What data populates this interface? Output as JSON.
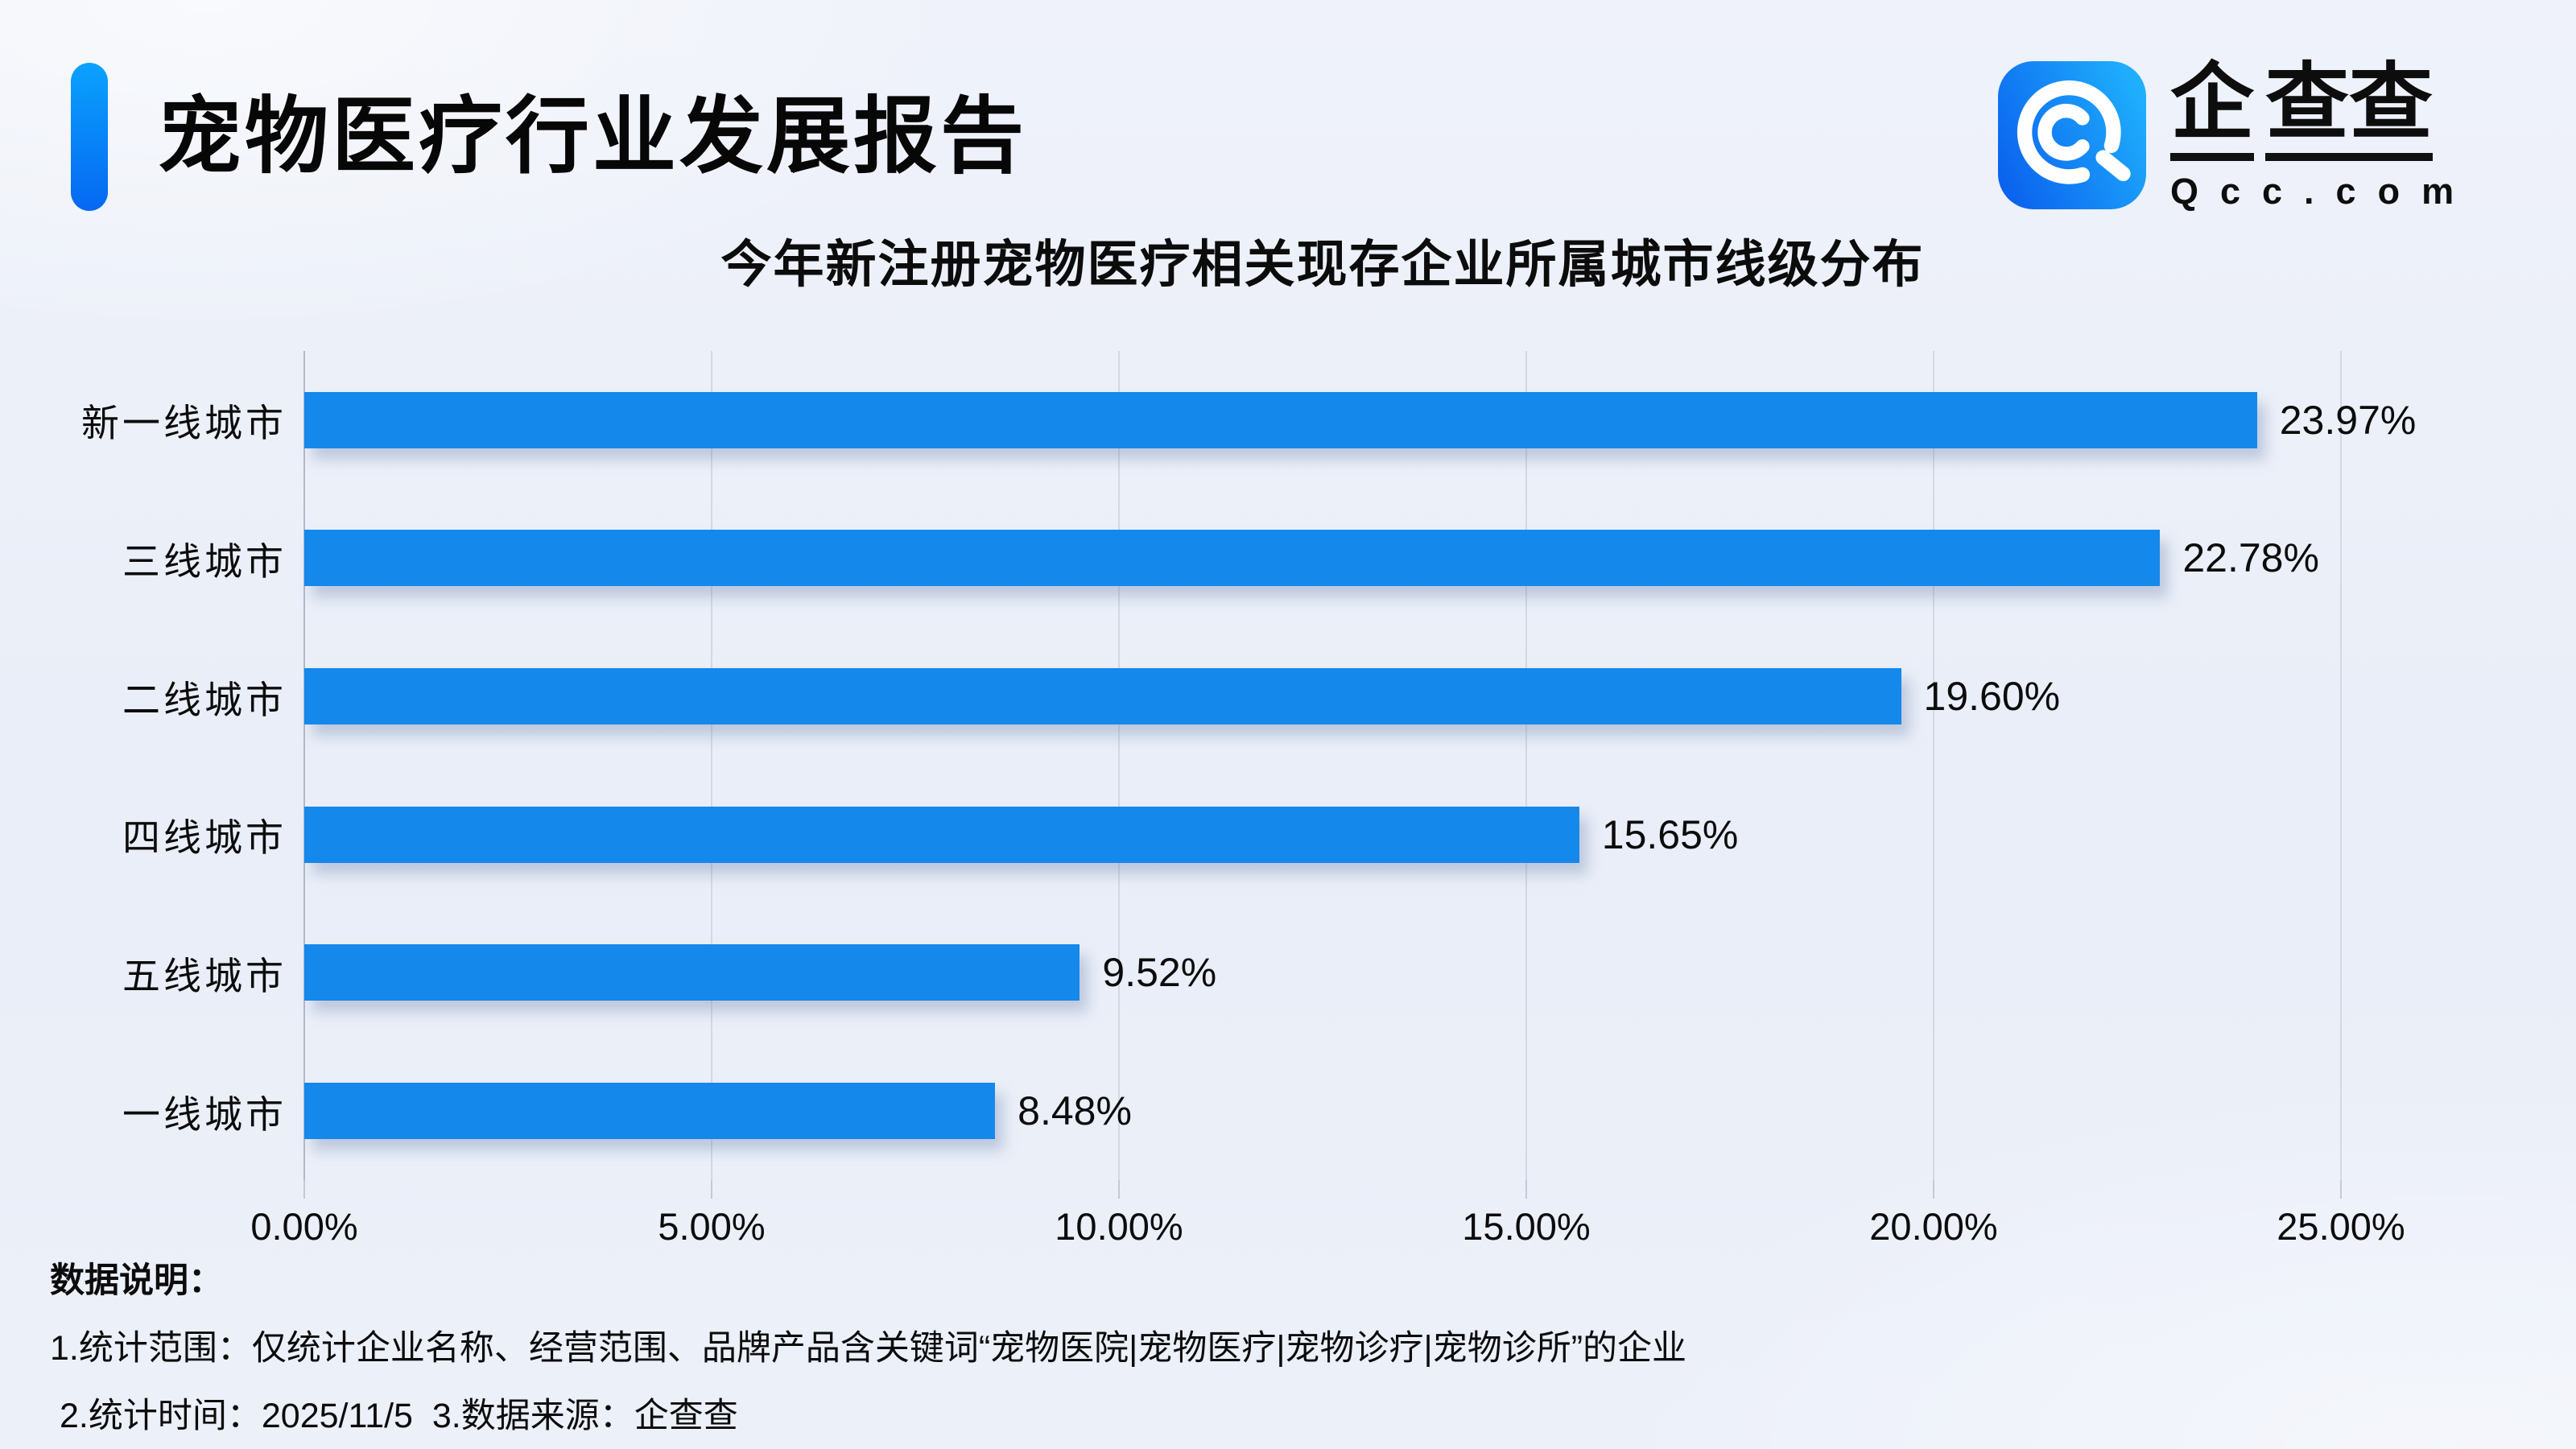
{
  "header": {
    "title": "宠物医疗行业发展报告"
  },
  "logo": {
    "brand_first": "企",
    "brand_rest": "查查",
    "domain": "Qcc.com",
    "icon": "qcc-concentric-q-icon",
    "icon_gradient": [
      "#0b63ee",
      "#1fb0fd"
    ]
  },
  "chart_data": {
    "type": "bar",
    "orientation": "horizontal",
    "title": "今年新注册宠物医疗相关现存企业所属城市线级分布",
    "categories": [
      "新一线城市",
      "三线城市",
      "二线城市",
      "四线城市",
      "五线城市",
      "一线城市"
    ],
    "values": [
      23.97,
      22.78,
      19.6,
      15.65,
      9.52,
      8.48
    ],
    "value_labels": [
      "23.97%",
      "22.78%",
      "19.60%",
      "15.65%",
      "9.52%",
      "8.48%"
    ],
    "x_ticks": [
      "0.00%",
      "5.00%",
      "10.00%",
      "15.00%",
      "20.00%",
      "25.00%"
    ],
    "xlim": [
      0,
      25
    ],
    "xlabel": "",
    "ylabel": "",
    "grid": true,
    "legend": "none",
    "bar_color": "#1588eb",
    "gridline_color": "#d3d8e2",
    "axis_line_color": "#b3b9c6"
  },
  "footer": {
    "heading": "数据说明：",
    "line1": "1.统计范围：仅统计企业名称、经营范围、品牌产品含关键词“宠物医院|宠物医疗|宠物诊疗|宠物诊所”的企业",
    "line2": "2.统计时间：2025/11/5  3.数据来源：企查查"
  },
  "colors": {
    "background": "#ecf0f9",
    "accent_gradient": [
      "#0aa2fd",
      "#0668f2"
    ],
    "text": "#0c0c0c"
  }
}
